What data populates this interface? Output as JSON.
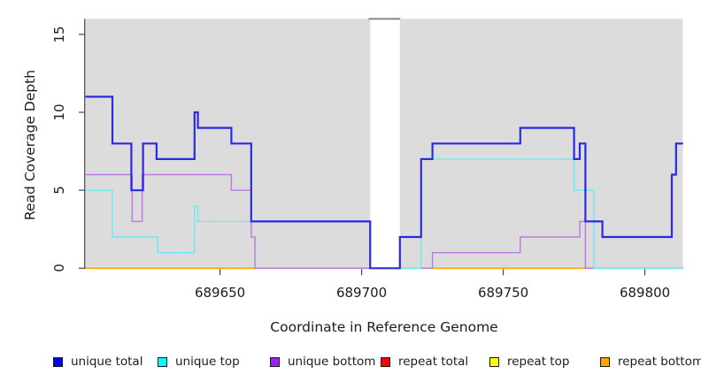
{
  "axes": {
    "ylabel": "Read Coverage Depth",
    "xlabel": "Coordinate in Reference Genome",
    "y_ticks": [
      0,
      5,
      10,
      15
    ],
    "x_ticks": [
      689650,
      689700,
      689750,
      689800
    ],
    "xlim": [
      689602.5,
      689813.5
    ],
    "ylim": [
      0,
      15
    ]
  },
  "chart_data": {
    "type": "step",
    "title": "",
    "xlabel": "Coordinate in Reference Genome",
    "ylabel": "Read Coverage Depth",
    "x_range": [
      689602.5,
      689813.5
    ],
    "y_range": [
      0,
      15
    ],
    "grid": false,
    "plot_background": "#DCDCDC",
    "gap": {
      "from": 689703,
      "to": 689713.5,
      "fill": "#ffffff",
      "top_border_color": "#808080"
    },
    "legend_position": "bottom",
    "series": [
      {
        "name": "unique total",
        "color": "#2A2ADF",
        "legend_color": "#0000EE",
        "width": 2.2,
        "z": 6,
        "points": [
          [
            689602.5,
            11
          ],
          [
            689612,
            8
          ],
          [
            689618.7,
            5
          ],
          [
            689622.8,
            8
          ],
          [
            689627.6,
            7
          ],
          [
            689641,
            10
          ],
          [
            689642.2,
            9
          ],
          [
            689654,
            8
          ],
          [
            689661,
            3
          ],
          [
            689703,
            0
          ],
          [
            689713.5,
            2
          ],
          [
            689721,
            7
          ],
          [
            689725,
            8
          ],
          [
            689756,
            9
          ],
          [
            689775,
            7
          ],
          [
            689777,
            8
          ],
          [
            689779,
            3
          ],
          [
            689785,
            2
          ],
          [
            689809.5,
            6
          ],
          [
            689811,
            8
          ]
        ]
      },
      {
        "name": "unique top",
        "color": "#6CE9F2",
        "legend_color": "#00FFFF",
        "width": 1.4,
        "z": 5,
        "points": [
          [
            689602.5,
            5
          ],
          [
            689612,
            2
          ],
          [
            689628,
            1
          ],
          [
            689641,
            4
          ],
          [
            689642.2,
            3
          ],
          [
            689703,
            0
          ],
          [
            689721,
            7
          ],
          [
            689775,
            5
          ],
          [
            689782,
            0
          ]
        ]
      },
      {
        "name": "unique bottom",
        "color": "#BA79DD",
        "legend_color": "#A020F0",
        "width": 1.4,
        "z": 4,
        "points": [
          [
            689602.5,
            6
          ],
          [
            689619,
            3
          ],
          [
            689622.5,
            6
          ],
          [
            689654,
            5
          ],
          [
            689661,
            2
          ],
          [
            689662.3,
            0
          ],
          [
            689725,
            1
          ],
          [
            689756,
            2
          ],
          [
            689777,
            3
          ],
          [
            689779,
            0
          ]
        ]
      },
      {
        "name": "repeat total",
        "color": "#E00000",
        "legend_color": "#FF0000",
        "width": 1.4,
        "z": 1,
        "points": [
          [
            689602.5,
            0
          ]
        ]
      },
      {
        "name": "repeat top",
        "color": "#F5F500",
        "legend_color": "#FFFF00",
        "width": 1.4,
        "z": 2,
        "points": [
          [
            689602.5,
            0
          ]
        ]
      },
      {
        "name": "repeat bottom",
        "color": "#FFA500",
        "legend_color": "#FFA500",
        "width": 1.6,
        "z": 3,
        "points": [
          [
            689602.5,
            0
          ]
        ]
      }
    ]
  },
  "legend": {
    "items": [
      {
        "label": "unique total",
        "color": "#0000EE"
      },
      {
        "label": "unique top",
        "color": "#00FFFF"
      },
      {
        "label": "unique bottom",
        "color": "#A020F0"
      },
      {
        "label": "repeat total",
        "color": "#FF0000"
      },
      {
        "label": "repeat top",
        "color": "#FFFF00"
      },
      {
        "label": "repeat bottom",
        "color": "#FFA500"
      }
    ]
  },
  "colors": {
    "plot_background": "#DCDCDC",
    "axis": "#464646",
    "text": "#1c1c1c"
  }
}
